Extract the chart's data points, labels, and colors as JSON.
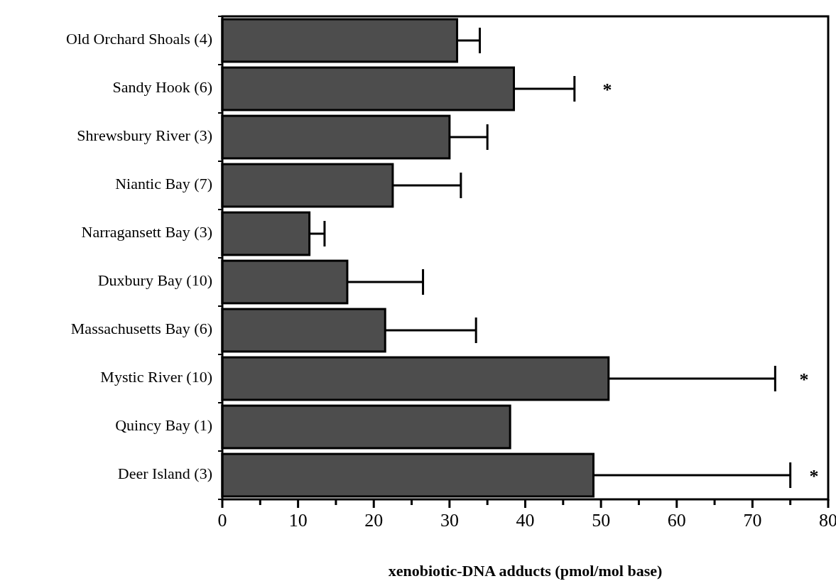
{
  "chart_data": {
    "type": "bar",
    "orientation": "horizontal",
    "xlabel": "xenobiotic-DNA adducts (pmol/mol base)",
    "categories": [
      "Old Orchard Shoals (4)",
      "Sandy Hook (6)",
      "Shrewsbury River (3)",
      "Niantic Bay (7)",
      "Narragansett Bay (3)",
      "Duxbury Bay (10)",
      "Massachusetts Bay (6)",
      "Mystic River (10)",
      "Quincy Bay (1)",
      "Deer Island (3)"
    ],
    "values": [
      31,
      38.5,
      30,
      22.5,
      11.5,
      16.5,
      21.5,
      51,
      38,
      49
    ],
    "errors": [
      [
        31,
        34
      ],
      [
        38.5,
        46.5
      ],
      [
        30,
        35
      ],
      [
        22.5,
        31.5
      ],
      [
        11.5,
        13.5
      ],
      [
        16.5,
        26.5
      ],
      [
        21.5,
        33.5
      ],
      [
        51,
        73
      ],
      null,
      [
        49,
        75
      ]
    ],
    "color": "#4d4d4d",
    "xlim": [
      0,
      80
    ],
    "xticks": [
      0,
      {
        "value": 5,
        "label": null
      },
      10,
      {
        "value": 15,
        "label": null
      },
      20,
      {
        "value": 25,
        "label": null
      },
      30,
      {
        "value": 35,
        "label": null
      },
      40,
      {
        "value": 45,
        "label": null
      },
      50,
      {
        "value": 55,
        "label": null
      },
      60,
      {
        "value": 65,
        "label": null
      },
      70,
      {
        "value": 75,
        "label": null
      },
      80
    ],
    "annotations": [
      "*",
      "*",
      "*"
    ],
    "grid": false
  }
}
